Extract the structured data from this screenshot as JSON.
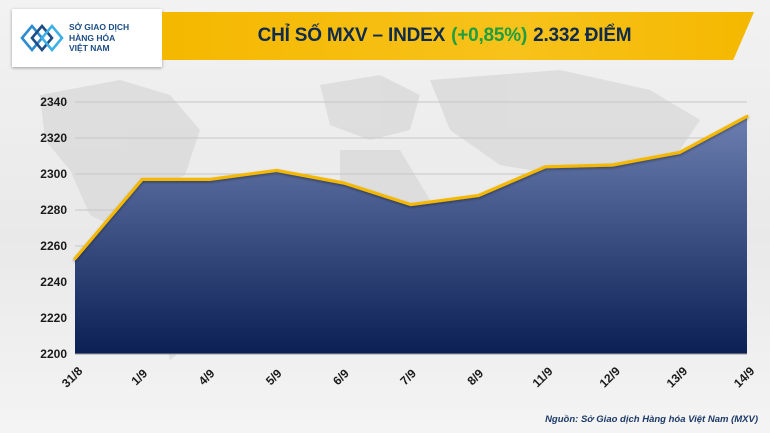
{
  "header": {
    "logo_lines": [
      "SỞ GIAO DỊCH",
      "HÀNG HÓA",
      "VIỆT NAM"
    ],
    "title_prefix": "CHỈ SỐ MXV – INDEX",
    "title_change": "(+0,85%)",
    "title_suffix": "2.332 ĐIỂM",
    "change_color": "#1f9e3f",
    "title_color": "#0e2a4d",
    "banner_color": "#f5b800"
  },
  "footer": {
    "source": "Nguồn: Sở Giao dịch Hàng hóa Việt Nam (MXV)"
  },
  "chart_data": {
    "type": "area",
    "title": "CHỈ SỐ MXV – INDEX (+0,85%) 2.332 ĐIỂM",
    "categories": [
      "31/8",
      "1/9",
      "4/9",
      "5/9",
      "6/9",
      "7/9",
      "8/9",
      "11/9",
      "12/9",
      "13/9",
      "14/9"
    ],
    "series": [
      {
        "values": [
          2253,
          2297,
          2297,
          2302,
          2295,
          2283,
          2288,
          2304,
          2305,
          2312,
          2332
        ]
      }
    ],
    "ylim": [
      2200,
      2340
    ],
    "yticks": [
      2200,
      2220,
      2240,
      2260,
      2280,
      2300,
      2320,
      2340
    ],
    "xlabel": "",
    "ylabel": "",
    "grid": true,
    "line_color": "#f5b800",
    "fill_top_color": "#6c7fb0",
    "fill_bottom_color": "#0b1f55"
  }
}
